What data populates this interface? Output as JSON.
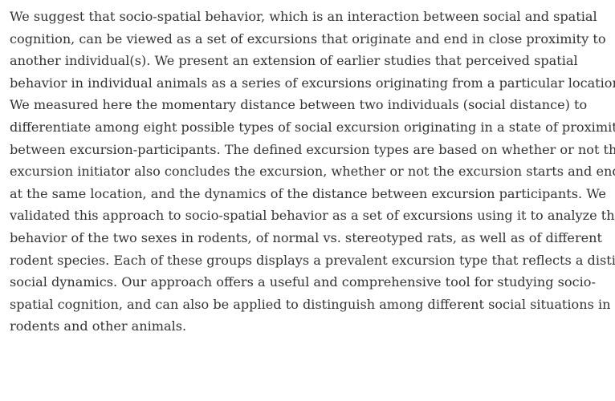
{
  "abstract": {
    "lines": [
      "We suggest that socio-spatial behavior, which is an interaction between social and spatial",
      "cognition, can be viewed as a set of excursions that originate and end in close proximity to",
      "another individual(s). We present an extension of earlier studies that perceived spatial",
      "behavior in individual animals as a series of excursions originating from a particular location.",
      "We measured here the momentary distance between two individuals (social distance) to",
      "differentiate among eight possible types of social excursion originating in a state of proximity",
      "between excursion-participants. The defined excursion types are based on whether or not the",
      "excursion initiator also concludes the excursion, whether or not the excursion starts and ends",
      "at the same location, and the dynamics of the distance between excursion participants. We",
      "validated this approach to socio-spatial behavior as a set of excursions using it to analyze the",
      "behavior of the two sexes in rodents, of normal vs. stereotyped rats, as well as of different",
      "rodent species. Each of these groups displays a prevalent excursion type that reflects a distinct",
      "social dynamics. Our approach offers a useful and comprehensive tool for studying socio-",
      "spatial cognition, and can also be applied to distinguish among different social situations in",
      "rodents and other animals."
    ]
  }
}
